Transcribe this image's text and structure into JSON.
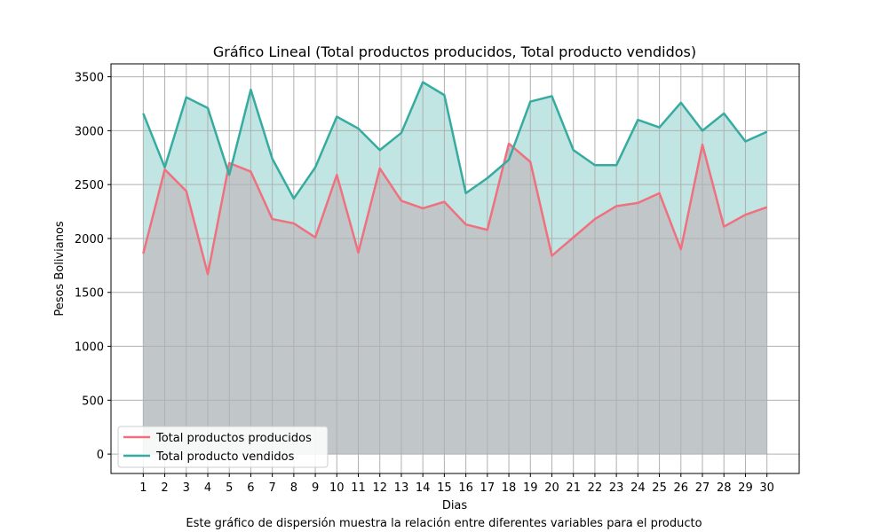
{
  "chart_data": {
    "type": "area",
    "title": "Gráfico Lineal (Total productos producidos, Total producto vendidos)",
    "xlabel": "Dias",
    "ylabel": "Pesos Bolivianos",
    "x": [
      1,
      2,
      3,
      4,
      5,
      6,
      7,
      8,
      9,
      10,
      11,
      12,
      13,
      14,
      15,
      16,
      17,
      18,
      19,
      20,
      21,
      22,
      23,
      24,
      25,
      26,
      27,
      28,
      29,
      30
    ],
    "xlim": [
      -0.5,
      31.5
    ],
    "ylim": [
      -180,
      3620
    ],
    "yticks": [
      0,
      500,
      1000,
      1500,
      2000,
      2500,
      3000,
      3500
    ],
    "grid": true,
    "legend_position": "lower-left",
    "series": [
      {
        "name": "Total productos producidos",
        "color": "#f0707f",
        "fill_color": "#c1c7c8",
        "values": [
          1860,
          2640,
          2440,
          1670,
          2700,
          2620,
          2180,
          2140,
          2010,
          2590,
          1870,
          2650,
          2350,
          2280,
          2340,
          2130,
          2080,
          2880,
          2710,
          1840,
          2010,
          2180,
          2300,
          2330,
          2420,
          1900,
          2870,
          2110,
          2220,
          2290
        ]
      },
      {
        "name": "Total producto vendidos",
        "color": "#36aba0",
        "fill_color": "#c0e5e2",
        "values": [
          3160,
          2660,
          3310,
          3210,
          2590,
          3380,
          2740,
          2370,
          2660,
          3130,
          3020,
          2820,
          2980,
          3450,
          3330,
          2420,
          2560,
          2730,
          3270,
          3320,
          2820,
          2680,
          2680,
          3100,
          3030,
          3260,
          3000,
          3160,
          2900,
          2990
        ]
      }
    ]
  },
  "caption": "Este gráfico de dispersión muestra la relación entre diferentes variables para el producto"
}
